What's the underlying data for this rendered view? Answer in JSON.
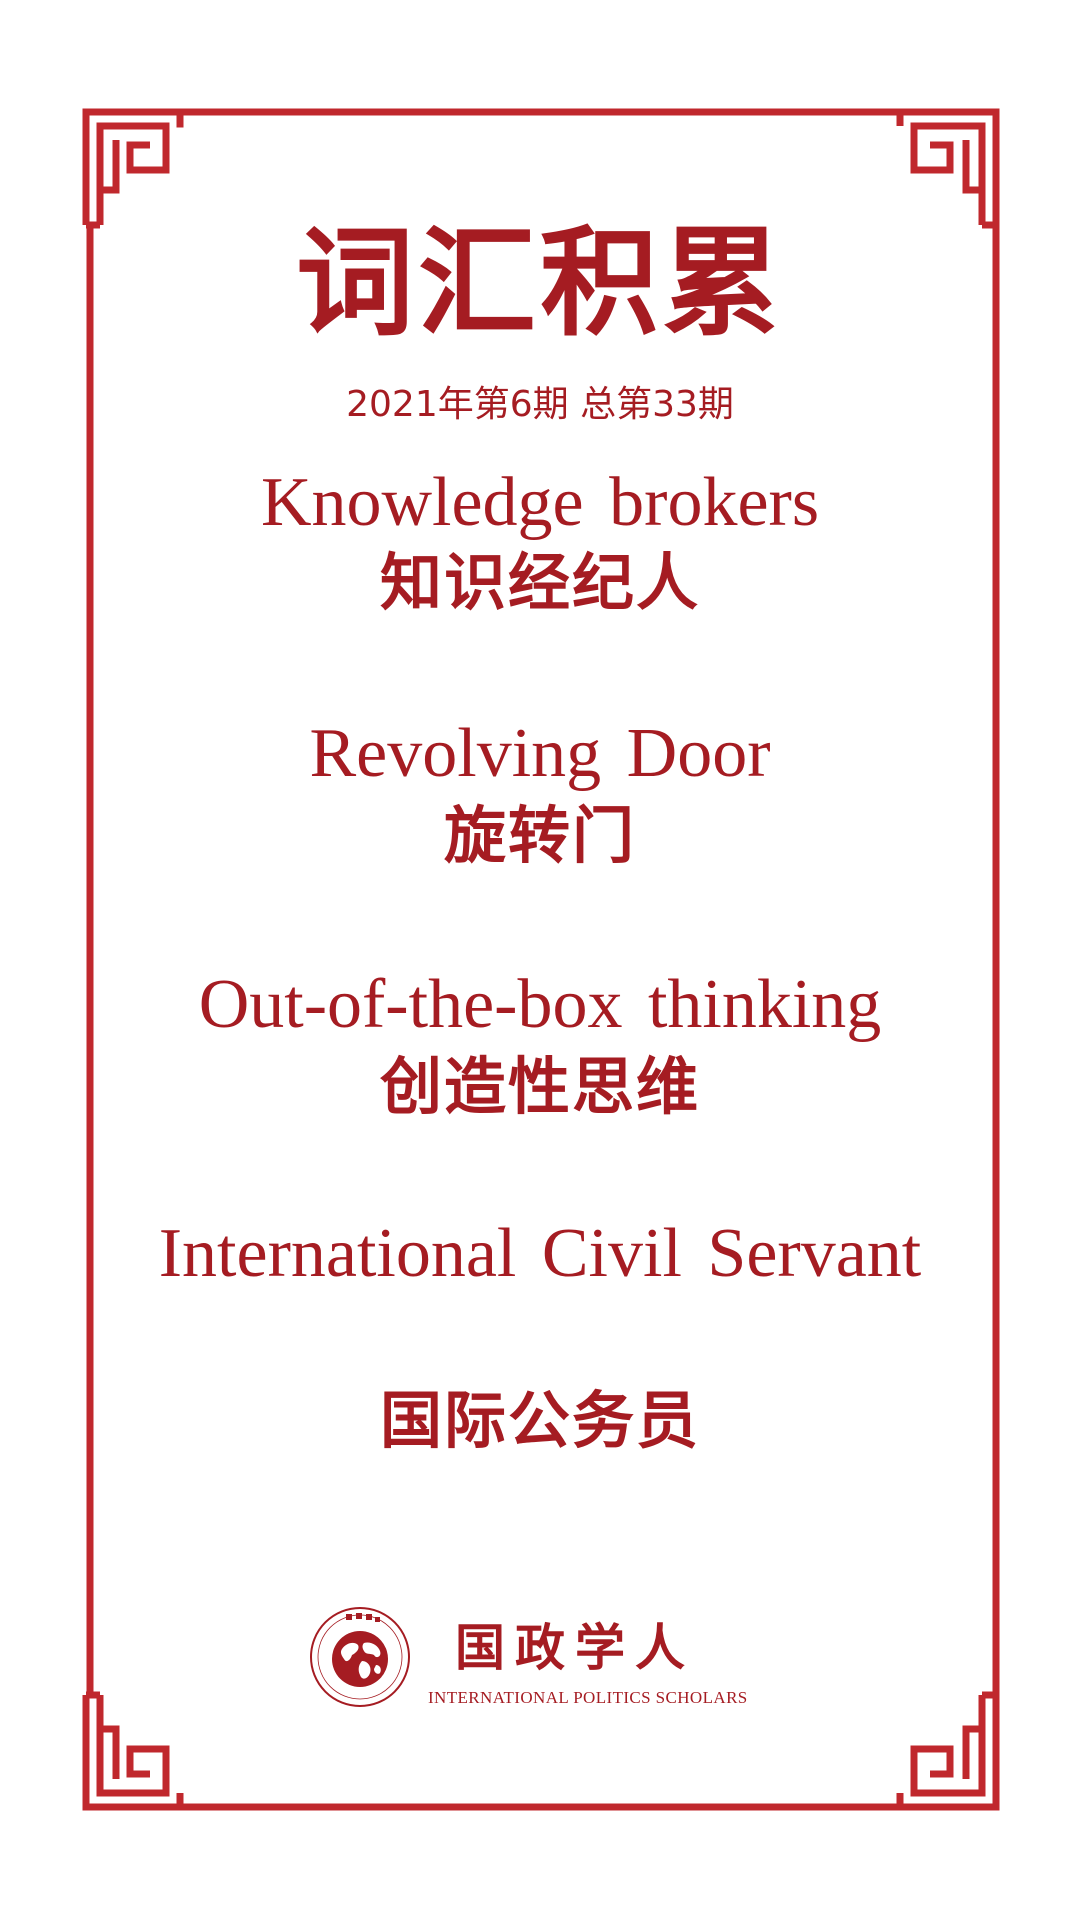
{
  "header": {
    "title": "词汇积累",
    "issue": "2021年第6期 总第33期"
  },
  "terms": [
    {
      "en": "Knowledge brokers",
      "zh": "知识经纪人"
    },
    {
      "en": "Revolving Door",
      "zh": "旋转门"
    },
    {
      "en": "Out-of-the-box thinking",
      "zh": "创造性思维"
    },
    {
      "en": "International Civil Servant",
      "zh": "国际公务员"
    }
  ],
  "brand": {
    "name_zh": "国政学人",
    "name_en": "INTERNATIONAL POLITICS SCHOLARS",
    "seal_text": "国政学人 INTERNATIONAL POLITICS SCHOLARS"
  },
  "colors": {
    "accent": "#a51c22",
    "frame": "#c0282d",
    "background": "#ffffff"
  },
  "icons": {
    "logo": "globe-seal-icon",
    "frame": "chinese-lattice-frame"
  }
}
